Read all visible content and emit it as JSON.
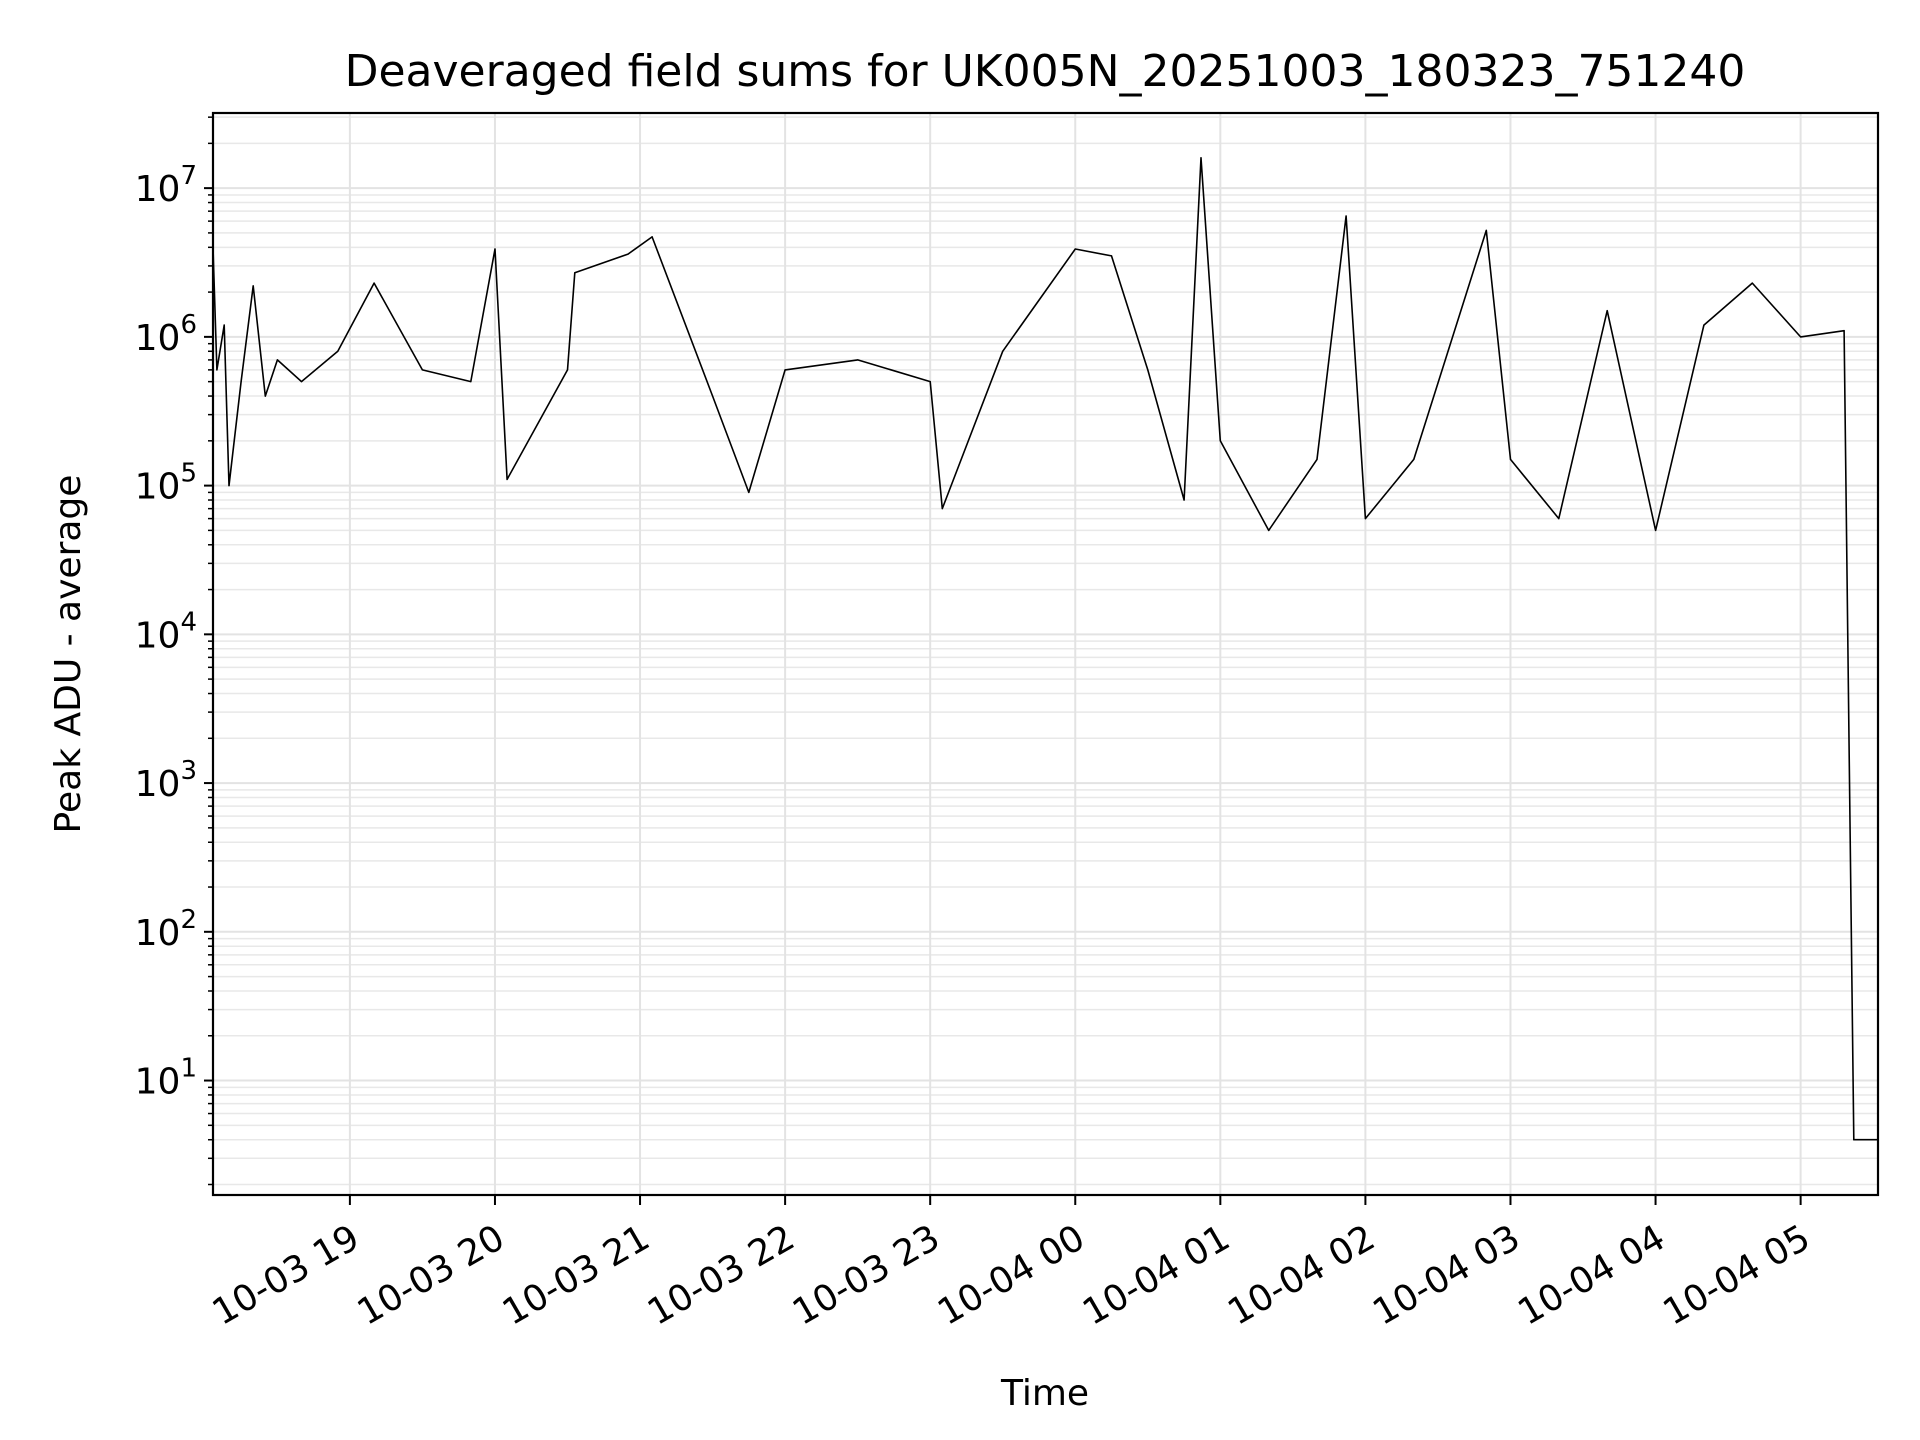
{
  "chart_data": {
    "type": "line",
    "title": "Deaveraged field sums for UK005N_20251003_180323_751240",
    "xlabel": "Time",
    "ylabel": "Peak ADU - average",
    "yscale": "log",
    "ylim": [
      1.7,
      32000000.0
    ],
    "xlim": [
      "2025-10-03 18:03:23",
      "2025-10-04 05:32:00"
    ],
    "grid": true,
    "line_color": "#000000",
    "x_ticks": [
      "10-03 19",
      "10-03 20",
      "10-03 21",
      "10-03 22",
      "10-03 23",
      "10-04 00",
      "10-04 01",
      "10-04 02",
      "10-04 03",
      "10-04 04",
      "10-04 05"
    ],
    "y_ticks": [
      10,
      100,
      1000,
      10000,
      100000,
      1000000,
      10000000
    ],
    "series": [
      {
        "points": [
          [
            "2025-10-03 18:03:23",
            4000000
          ],
          [
            "2025-10-03 18:05:00",
            600000
          ],
          [
            "2025-10-03 18:08:00",
            1200000
          ],
          [
            "2025-10-03 18:10:00",
            100000
          ],
          [
            "2025-10-03 18:15:00",
            500000
          ],
          [
            "2025-10-03 18:20:00",
            2200000
          ],
          [
            "2025-10-03 18:25:00",
            400000
          ],
          [
            "2025-10-03 18:30:00",
            700000
          ],
          [
            "2025-10-03 18:40:00",
            500000
          ],
          [
            "2025-10-03 18:55:00",
            800000
          ],
          [
            "2025-10-03 19:10:00",
            2300000
          ],
          [
            "2025-10-03 19:30:00",
            600000
          ],
          [
            "2025-10-03 19:50:00",
            500000
          ],
          [
            "2025-10-03 20:00:00",
            3900000
          ],
          [
            "2025-10-03 20:05:00",
            110000
          ],
          [
            "2025-10-03 20:30:00",
            600000
          ],
          [
            "2025-10-03 20:33:00",
            2700000
          ],
          [
            "2025-10-03 20:55:00",
            3600000
          ],
          [
            "2025-10-03 21:05:00",
            4700000
          ],
          [
            "2025-10-03 21:30:00",
            400000
          ],
          [
            "2025-10-03 21:45:00",
            90000
          ],
          [
            "2025-10-03 22:00:00",
            600000
          ],
          [
            "2025-10-03 22:30:00",
            700000
          ],
          [
            "2025-10-03 23:00:00",
            500000
          ],
          [
            "2025-10-03 23:05:00",
            70000
          ],
          [
            "2025-10-03 23:30:00",
            800000
          ],
          [
            "2025-10-04 00:00:00",
            3900000
          ],
          [
            "2025-10-04 00:15:00",
            3500000
          ],
          [
            "2025-10-04 00:30:00",
            600000
          ],
          [
            "2025-10-04 00:45:00",
            80000
          ],
          [
            "2025-10-04 00:52:00",
            16000000
          ],
          [
            "2025-10-04 01:00:00",
            200000
          ],
          [
            "2025-10-04 01:20:00",
            50000
          ],
          [
            "2025-10-04 01:40:00",
            150000
          ],
          [
            "2025-10-04 01:52:00",
            6500000
          ],
          [
            "2025-10-04 02:00:00",
            60000
          ],
          [
            "2025-10-04 02:20:00",
            150000
          ],
          [
            "2025-10-04 02:50:00",
            5200000
          ],
          [
            "2025-10-04 03:00:00",
            150000
          ],
          [
            "2025-10-04 03:20:00",
            60000
          ],
          [
            "2025-10-04 03:40:00",
            1500000
          ],
          [
            "2025-10-04 04:00:00",
            50000
          ],
          [
            "2025-10-04 04:20:00",
            1200000
          ],
          [
            "2025-10-04 04:40:00",
            2300000
          ],
          [
            "2025-10-04 05:00:00",
            1000000
          ],
          [
            "2025-10-04 05:18:00",
            1100000
          ],
          [
            "2025-10-04 05:22:00",
            4
          ],
          [
            "2025-10-04 05:32:00",
            4
          ]
        ]
      }
    ]
  }
}
